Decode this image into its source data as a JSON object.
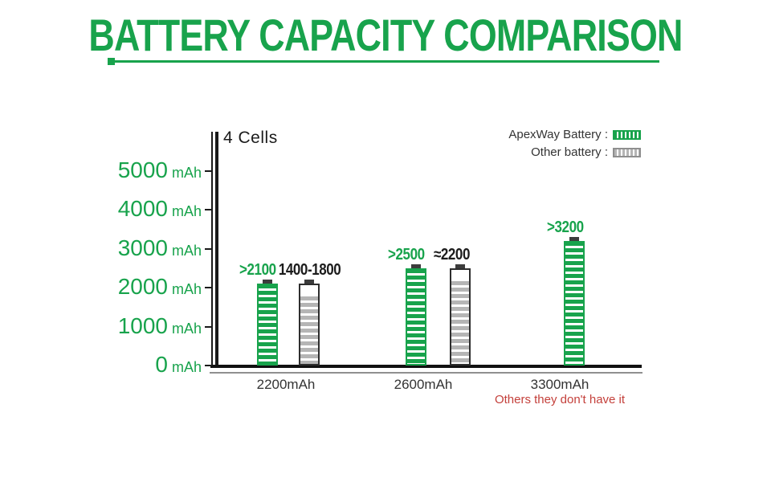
{
  "title": "BATTERY CAPACITY COMPARISON",
  "colors": {
    "green": "#18A34C",
    "gray_stripe": "#B5B5B5",
    "gray_border": "#8F8F8F",
    "dark_text": "#1C1C1C",
    "red": "#C4403B",
    "axis": "#1A1A1A",
    "terminal": "#3C3C3C",
    "legend_text": "#333333"
  },
  "legend": {
    "items": [
      {
        "label": "ApexWay Battery :",
        "series": "apexway",
        "style": "green"
      },
      {
        "label": "Other battery :",
        "series": "other",
        "style": "gray"
      }
    ]
  },
  "chart_data": {
    "type": "bar",
    "title": "BATTERY CAPACITY COMPARISON",
    "subtitle": "4 Cells",
    "legend_position": "top-right",
    "grid": false,
    "y_axis": {
      "unit": "mAh",
      "ticks": [
        5000,
        4000,
        3000,
        2000,
        1000,
        0
      ],
      "ylim": [
        0,
        5000
      ]
    },
    "groups": [
      {
        "x_label": "2200mAh",
        "bars": [
          {
            "series": "ApexWay Battery",
            "label": ">2100",
            "value_mah": 2100,
            "case_mah": 2100,
            "style": "green"
          },
          {
            "series": "Other battery",
            "label": "1400-1800",
            "value_mah": 1800,
            "case_mah": 2100,
            "style": "gray"
          }
        ]
      },
      {
        "x_label": "2600mAh",
        "bars": [
          {
            "series": "ApexWay Battery",
            "label": ">2500",
            "value_mah": 2500,
            "case_mah": 2500,
            "style": "green"
          },
          {
            "series": "Other battery",
            "label": "≈2200",
            "value_mah": 2200,
            "case_mah": 2500,
            "style": "gray"
          }
        ]
      },
      {
        "x_label": "3300mAh",
        "x_note": "Others they don't have it",
        "bars": [
          {
            "series": "ApexWay Battery",
            "label": ">3200",
            "value_mah": 3200,
            "case_mah": 3200,
            "style": "green"
          }
        ]
      }
    ]
  }
}
